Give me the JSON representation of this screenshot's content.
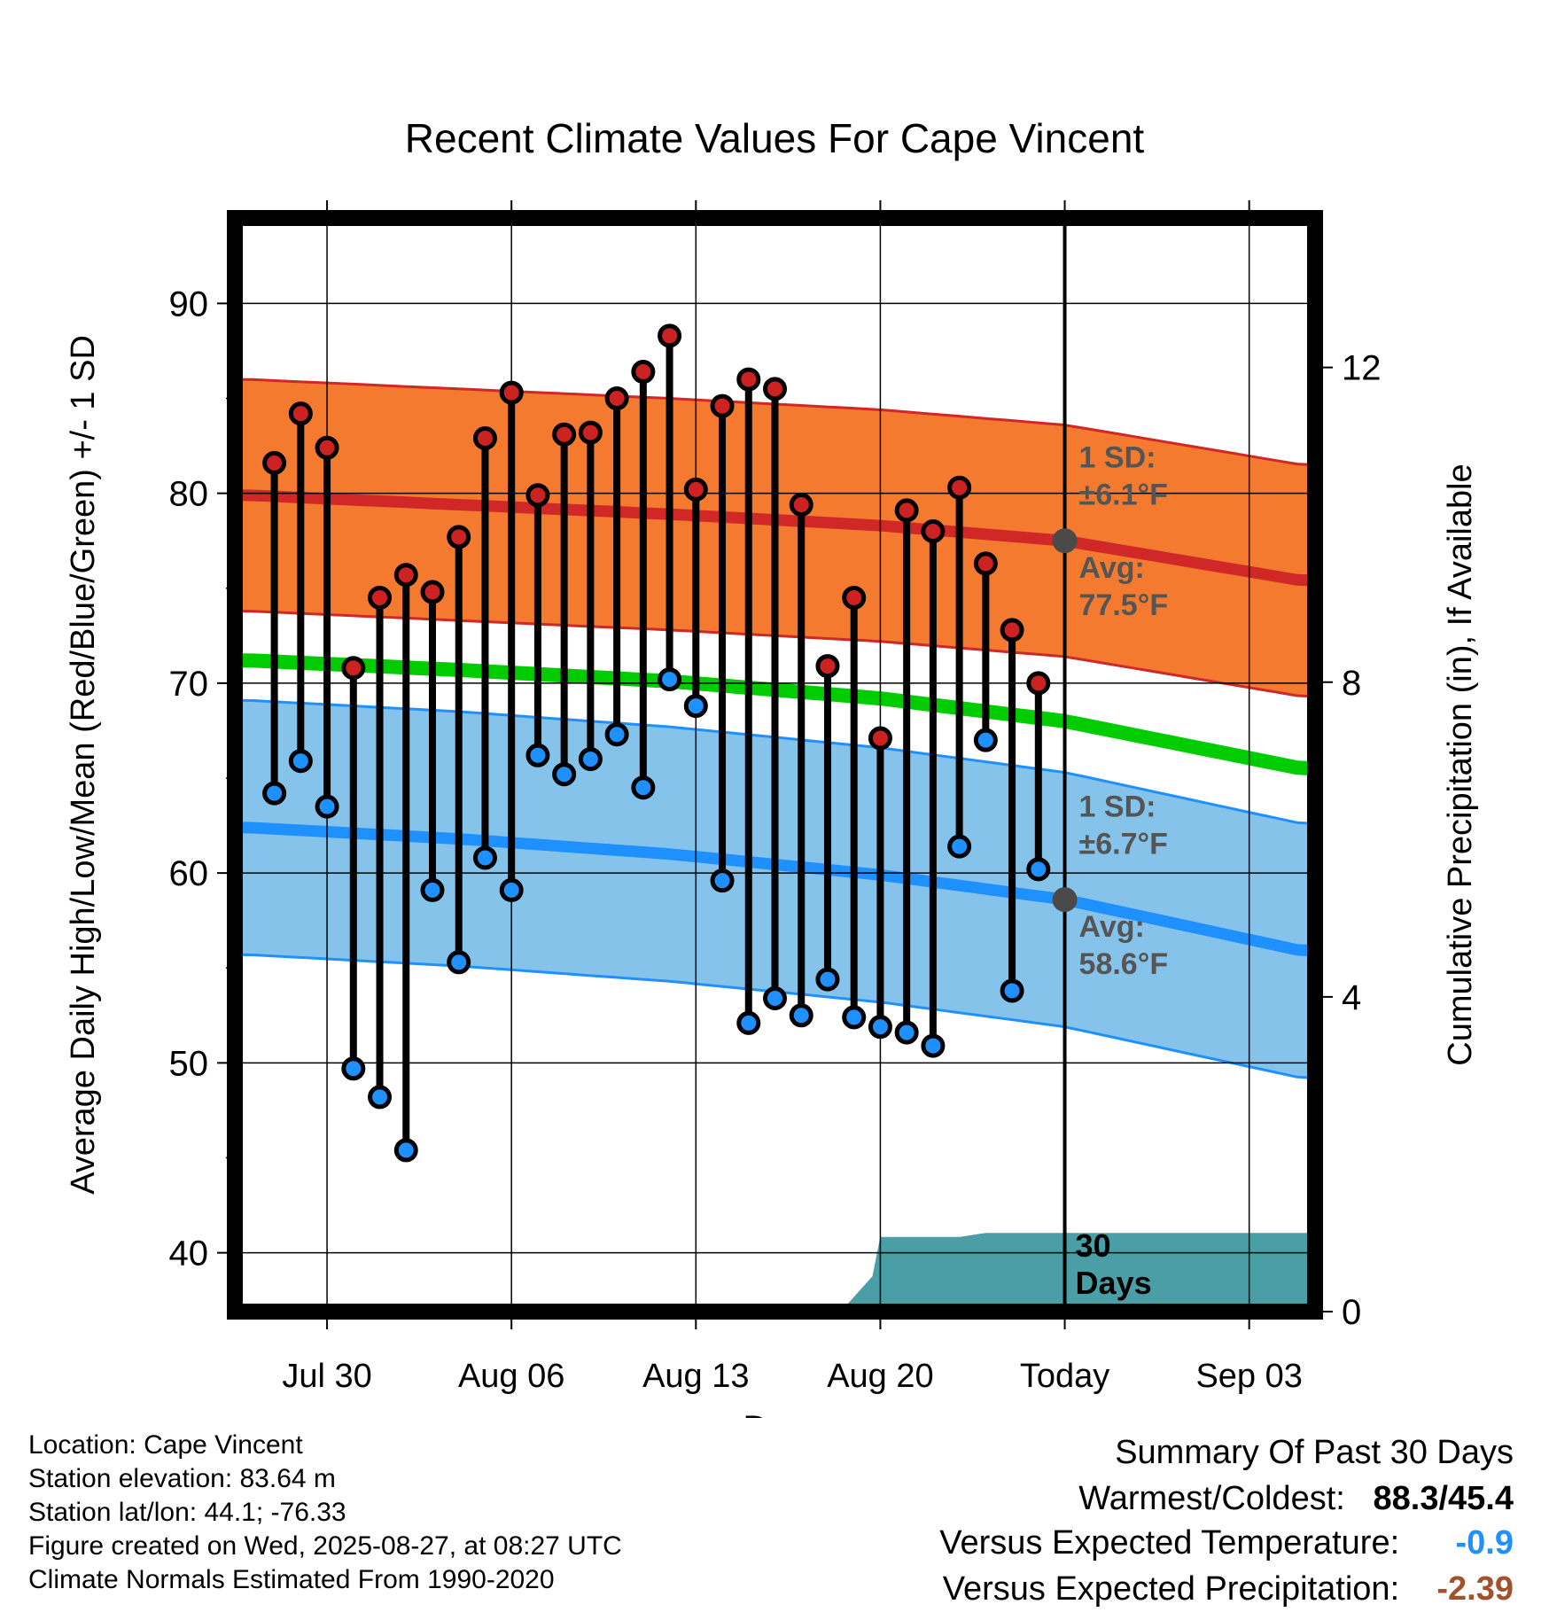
{
  "chart_data": {
    "type": "line",
    "title": "Recent Climate Values For Cape Vincent",
    "xlabel": "Day",
    "ylabel_left": "Average Daily High/Low/Mean (Red/Blue/Green) +/- 1 SD",
    "ylabel_right": "Cumulative Precipitation (in), If Available",
    "x_ticks": [
      {
        "label": "Jul 30",
        "day": 3
      },
      {
        "label": "Aug 06",
        "day": 10
      },
      {
        "label": "Aug 13",
        "day": 17
      },
      {
        "label": "Aug 20",
        "day": 24
      },
      {
        "label": "Today",
        "day": 31
      },
      {
        "label": "Sep 03",
        "day": 38
      }
    ],
    "xlim": [
      -0.5,
      40.5
    ],
    "ylim": [
      36.9,
      94.5
    ],
    "y_ticks": [
      40,
      50,
      60,
      70,
      80,
      90
    ],
    "precip_ylim": [
      0,
      0
    ],
    "precip_ticks": [
      0,
      4,
      8,
      12
    ],
    "today_label": "30 Days",
    "daily_highs": [
      81.6,
      84.2,
      82.4,
      70.8,
      74.5,
      75.7,
      74.8,
      77.7,
      82.9,
      85.3,
      79.9,
      83.1,
      83.2,
      85.0,
      86.4,
      88.3,
      80.2,
      84.6,
      86.0,
      85.5,
      79.4,
      70.9,
      74.5,
      67.1,
      79.1,
      78.0,
      80.3,
      76.3,
      72.8,
      70.0
    ],
    "daily_lows": [
      64.2,
      65.9,
      63.5,
      49.7,
      48.2,
      45.4,
      59.1,
      55.3,
      60.8,
      59.1,
      66.2,
      65.2,
      66.0,
      67.3,
      64.5,
      70.2,
      68.8,
      59.6,
      52.1,
      53.4,
      52.5,
      54.4,
      52.4,
      51.9,
      51.6,
      50.9,
      61.4,
      67.0,
      53.8,
      60.2
    ],
    "normal_high": {
      "day_values": [
        0,
        8,
        16,
        24,
        31,
        40
      ],
      "avg": [
        79.9,
        79.4,
        78.9,
        78.3,
        77.5,
        75.4
      ],
      "sd": 6.1
    },
    "normal_low": {
      "day_values": [
        0,
        8,
        16,
        24,
        31,
        40
      ],
      "avg": [
        62.4,
        61.8,
        61.0,
        59.9,
        58.6,
        55.9
      ],
      "sd": 6.7
    },
    "normal_mean": {
      "day_values": [
        0,
        8,
        16,
        24,
        31,
        40
      ],
      "avg": [
        71.2,
        70.7,
        70.1,
        69.2,
        68.0,
        65.5
      ]
    },
    "precip_cumulative": [
      [
        22.5,
        0
      ],
      [
        23.7,
        0.45
      ],
      [
        24.0,
        0.95
      ],
      [
        27.0,
        0.95
      ],
      [
        28.0,
        1.0
      ],
      [
        40.5,
        1.0
      ]
    ],
    "annotations": {
      "high_sd": "1 SD:",
      "high_sd_value": "±6.1°F",
      "high_avg": "Avg:",
      "high_avg_value": "77.5°F",
      "low_sd": "1 SD:",
      "low_sd_value": "±6.7°F",
      "low_avg": "Avg:",
      "low_avg_value": "58.6°F"
    },
    "colors": {
      "high_band": "#f47a30",
      "high_line": "#d02727",
      "low_band": "#86c3ea",
      "low_line": "#1e90ff",
      "mean_line": "#00cc00",
      "precip": "#4a9ea6",
      "high_dot": "#cc2222",
      "low_dot": "#1e90ff",
      "today_dot": "#4a4a4a"
    }
  },
  "meta": {
    "location": "Location: Cape Vincent",
    "elevation": "Station elevation: 83.64 m",
    "latlon": "Station lat/lon: 44.1; -76.33",
    "created": "Figure created on Wed, 2025-08-27, at 08:27 UTC",
    "normals": "Climate Normals Estimated From 1990-2020"
  },
  "summary": {
    "title": "Summary Of Past 30 Days",
    "warmest_label": "Warmest/Coldest:",
    "warmest_value": "88.3/45.4",
    "temp_label": "Versus Expected Temperature:",
    "temp_value": "-0.9",
    "temp_color": "#1e90ff",
    "precip_label": "Versus Expected Precipitation:",
    "precip_value": "-2.39",
    "precip_color": "#a0522d"
  }
}
